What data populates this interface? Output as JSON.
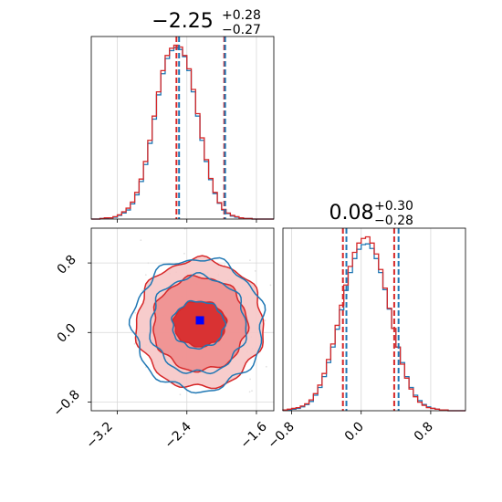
{
  "chart_data": [
    {
      "type": "histogram",
      "panel": "marginal-x",
      "title": {
        "value": "−2.25",
        "upper": "+0.28",
        "lower": "−0.27"
      },
      "xlim": [
        -3.5,
        -1.4
      ],
      "bins": [
        -3.5,
        -3.45,
        -3.4,
        -3.35,
        -3.3,
        -3.25,
        -3.2,
        -3.15,
        -3.1,
        -3.05,
        -3.0,
        -2.95,
        -2.9,
        -2.85,
        -2.8,
        -2.75,
        -2.7,
        -2.65,
        -2.6,
        -2.55,
        -2.5,
        -2.45,
        -2.4,
        -2.35,
        -2.3,
        -2.25,
        -2.2,
        -2.15,
        -2.1,
        -2.05,
        -2.0,
        -1.95,
        -1.9,
        -1.85,
        -1.8,
        -1.75,
        -1.7,
        -1.65,
        -1.6,
        -1.55,
        -1.5,
        -1.45,
        -1.4
      ],
      "series": [
        {
          "color": "#1f77b4",
          "counts": [
            0,
            0,
            1,
            1,
            2,
            3,
            6,
            10,
            15,
            25,
            40,
            62,
            90,
            125,
            165,
            205,
            240,
            265,
            278,
            283,
            280,
            268,
            245,
            210,
            170,
            130,
            95,
            65,
            42,
            26,
            15,
            9,
            5,
            3,
            2,
            1,
            1,
            0,
            0,
            0,
            0,
            0
          ]
        },
        {
          "color": "#d62728",
          "counts": [
            0,
            0,
            1,
            2,
            2,
            4,
            7,
            12,
            18,
            28,
            44,
            66,
            95,
            130,
            170,
            210,
            245,
            270,
            282,
            287,
            284,
            270,
            248,
            214,
            174,
            134,
            98,
            67,
            44,
            27,
            16,
            10,
            6,
            4,
            2,
            1,
            1,
            0,
            0,
            0,
            0,
            0
          ]
        }
      ],
      "quantile_lines": [
        {
          "color": "#d62728",
          "values": [
            -2.52,
            -2.25,
            -1.97
          ]
        },
        {
          "color": "#1f77b4",
          "values": [
            -2.49,
            -2.22,
            -1.96
          ]
        }
      ]
    },
    {
      "type": "contour",
      "panel": "joint",
      "xlim": [
        -3.5,
        -1.4
      ],
      "ylim": [
        -0.9,
        1.2
      ],
      "series": [
        {
          "color": "#1f77b4",
          "center": [
            -2.27,
            0.09
          ],
          "radii": [
            [
              0.3,
              0.27
            ],
            [
              0.55,
              0.56
            ],
            [
              0.75,
              0.76
            ]
          ]
        },
        {
          "color": "#d62728",
          "center": [
            -2.25,
            0.1
          ],
          "radii": [
            [
              0.3,
              0.26
            ],
            [
              0.54,
              0.54
            ],
            [
              0.73,
              0.74
            ]
          ]
        }
      ],
      "truth_marker": {
        "color": "#0000ff",
        "x": -2.25,
        "y": 0.14
      }
    },
    {
      "type": "histogram",
      "panel": "marginal-y",
      "title": {
        "value": "0.08",
        "upper": "+0.30",
        "lower": "−0.28"
      },
      "xlim": [
        -0.9,
        1.2
      ],
      "bins": [
        -0.9,
        -0.85,
        -0.8,
        -0.75,
        -0.7,
        -0.65,
        -0.6,
        -0.55,
        -0.5,
        -0.45,
        -0.4,
        -0.35,
        -0.3,
        -0.25,
        -0.2,
        -0.15,
        -0.1,
        -0.05,
        0.0,
        0.05,
        0.1,
        0.15,
        0.2,
        0.25,
        0.3,
        0.35,
        0.4,
        0.45,
        0.5,
        0.55,
        0.6,
        0.65,
        0.7,
        0.75,
        0.8,
        0.85,
        0.9,
        0.95,
        1.0,
        1.05,
        1.1,
        1.15,
        1.2
      ],
      "series": [
        {
          "color": "#1f77b4",
          "counts": [
            1,
            1,
            2,
            3,
            5,
            8,
            12,
            20,
            30,
            44,
            62,
            82,
            105,
            130,
            155,
            178,
            196,
            208,
            214,
            215,
            209,
            196,
            178,
            156,
            131,
            106,
            82,
            62,
            44,
            30,
            20,
            13,
            8,
            5,
            3,
            2,
            1,
            1,
            0,
            0,
            0,
            0
          ]
        },
        {
          "color": "#d62728",
          "counts": [
            1,
            2,
            3,
            4,
            6,
            9,
            14,
            22,
            33,
            48,
            66,
            86,
            110,
            136,
            162,
            186,
            204,
            216,
            222,
            224,
            216,
            202,
            182,
            158,
            132,
            106,
            82,
            60,
            42,
            28,
            18,
            11,
            7,
            4,
            3,
            2,
            1,
            1,
            0,
            0,
            0,
            0
          ]
        }
      ],
      "quantile_lines": [
        {
          "color": "#d62728",
          "values": [
            -0.21,
            0.08,
            0.38
          ]
        },
        {
          "color": "#1f77b4",
          "values": [
            -0.17,
            0.1,
            0.43
          ]
        }
      ]
    }
  ],
  "axes": {
    "x_ticks_main": [
      "−3.2",
      "−2.4",
      "−1.6"
    ],
    "y_ticks_main": [
      "0.8",
      "0.0",
      "−0.8"
    ],
    "x_ticks_right": [
      "−0.8",
      "0.0",
      "0.8"
    ]
  }
}
